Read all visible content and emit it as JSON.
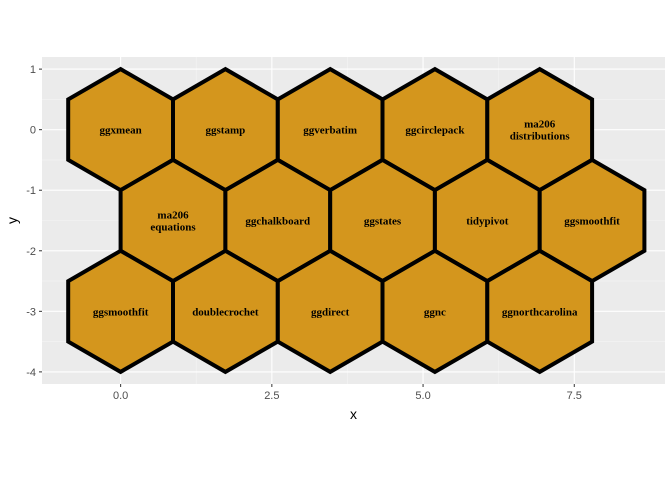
{
  "chart_data": {
    "type": "scatter",
    "xlabel": "x",
    "ylabel": "y",
    "xlim": [
      -1.3,
      9.0
    ],
    "ylim": [
      -4.2,
      1.2
    ],
    "x_ticks": [
      {
        "value": 0.0,
        "label": "0.0"
      },
      {
        "value": 2.5,
        "label": "2.5"
      },
      {
        "value": 5.0,
        "label": "5.0"
      },
      {
        "value": 7.5,
        "label": "7.5"
      }
    ],
    "y_ticks": [
      {
        "value": 1,
        "label": "1"
      },
      {
        "value": 0,
        "label": "0"
      },
      {
        "value": -1,
        "label": "-1"
      },
      {
        "value": -2,
        "label": "-2"
      },
      {
        "value": -3,
        "label": "-3"
      },
      {
        "value": -4,
        "label": "-4"
      }
    ],
    "hex_radius": 1.0,
    "points": [
      {
        "x": 0.0,
        "y": 0.0,
        "label": [
          "ggxmean"
        ]
      },
      {
        "x": 1.732,
        "y": 0.0,
        "label": [
          "ggstamp"
        ]
      },
      {
        "x": 3.464,
        "y": 0.0,
        "label": [
          "ggverbatim"
        ]
      },
      {
        "x": 5.196,
        "y": 0.0,
        "label": [
          "ggcirclepack"
        ]
      },
      {
        "x": 6.928,
        "y": 0.0,
        "label": [
          "ma206",
          "distributions"
        ]
      },
      {
        "x": 0.866,
        "y": -1.5,
        "label": [
          "ma206",
          "equations"
        ]
      },
      {
        "x": 2.598,
        "y": -1.5,
        "label": [
          "ggchalkboard"
        ]
      },
      {
        "x": 4.33,
        "y": -1.5,
        "label": [
          "ggstates"
        ]
      },
      {
        "x": 6.062,
        "y": -1.5,
        "label": [
          "tidypivot"
        ]
      },
      {
        "x": 7.794,
        "y": -1.5,
        "label": [
          "ggsmoothfit"
        ]
      },
      {
        "x": 0.0,
        "y": -3.0,
        "label": [
          "ggsmoothfit"
        ]
      },
      {
        "x": 1.732,
        "y": -3.0,
        "label": [
          "doublecrochet"
        ]
      },
      {
        "x": 3.464,
        "y": -3.0,
        "label": [
          "ggdirect"
        ]
      },
      {
        "x": 5.196,
        "y": -3.0,
        "label": [
          "ggnc"
        ]
      },
      {
        "x": 6.928,
        "y": -3.0,
        "label": [
          "ggnorthcarolina"
        ]
      }
    ],
    "colors": {
      "panel": "#ebebeb",
      "grid_major": "#ffffff",
      "grid_minor": "#f5f5f5",
      "hex_fill": "#d4961d",
      "hex_stroke": "#000000",
      "tick": "#333333"
    },
    "grid": true,
    "legend": "none"
  }
}
